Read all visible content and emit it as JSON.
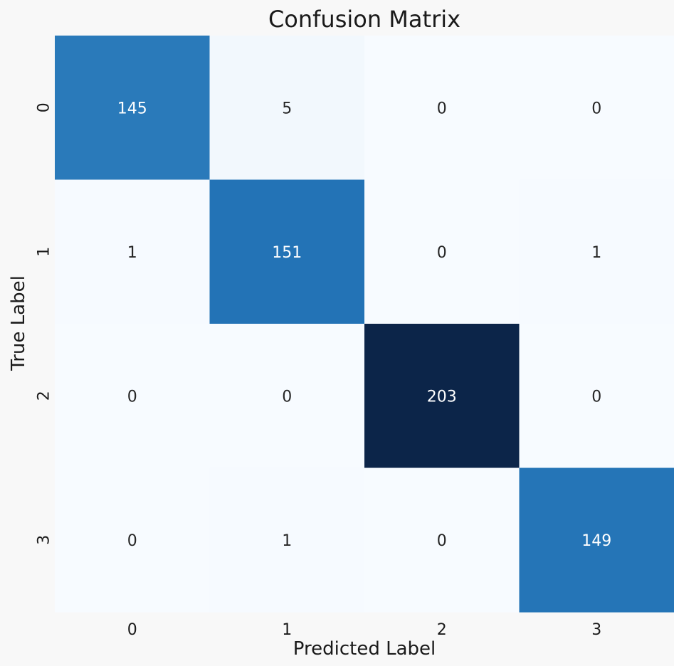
{
  "chart_data": {
    "type": "heatmap",
    "title": "Confusion Matrix",
    "xlabel": "Predicted Label",
    "ylabel": "True Label",
    "x_categories": [
      "0",
      "1",
      "2",
      "3"
    ],
    "y_categories": [
      "0",
      "1",
      "2",
      "3"
    ],
    "matrix": [
      [
        145,
        5,
        0,
        0
      ],
      [
        1,
        151,
        0,
        1
      ],
      [
        0,
        0,
        203,
        0
      ],
      [
        0,
        1,
        0,
        149
      ]
    ],
    "colormap": "Blues",
    "value_range": [
      0,
      203
    ],
    "colorbar": false,
    "grid": false,
    "colors": {
      "background": "#f8f8f8",
      "low": "#f7fbff",
      "mid": "#3a7cba",
      "high": "#0c2549",
      "text_light": "#ffffff",
      "text_dark": "#262626"
    }
  }
}
